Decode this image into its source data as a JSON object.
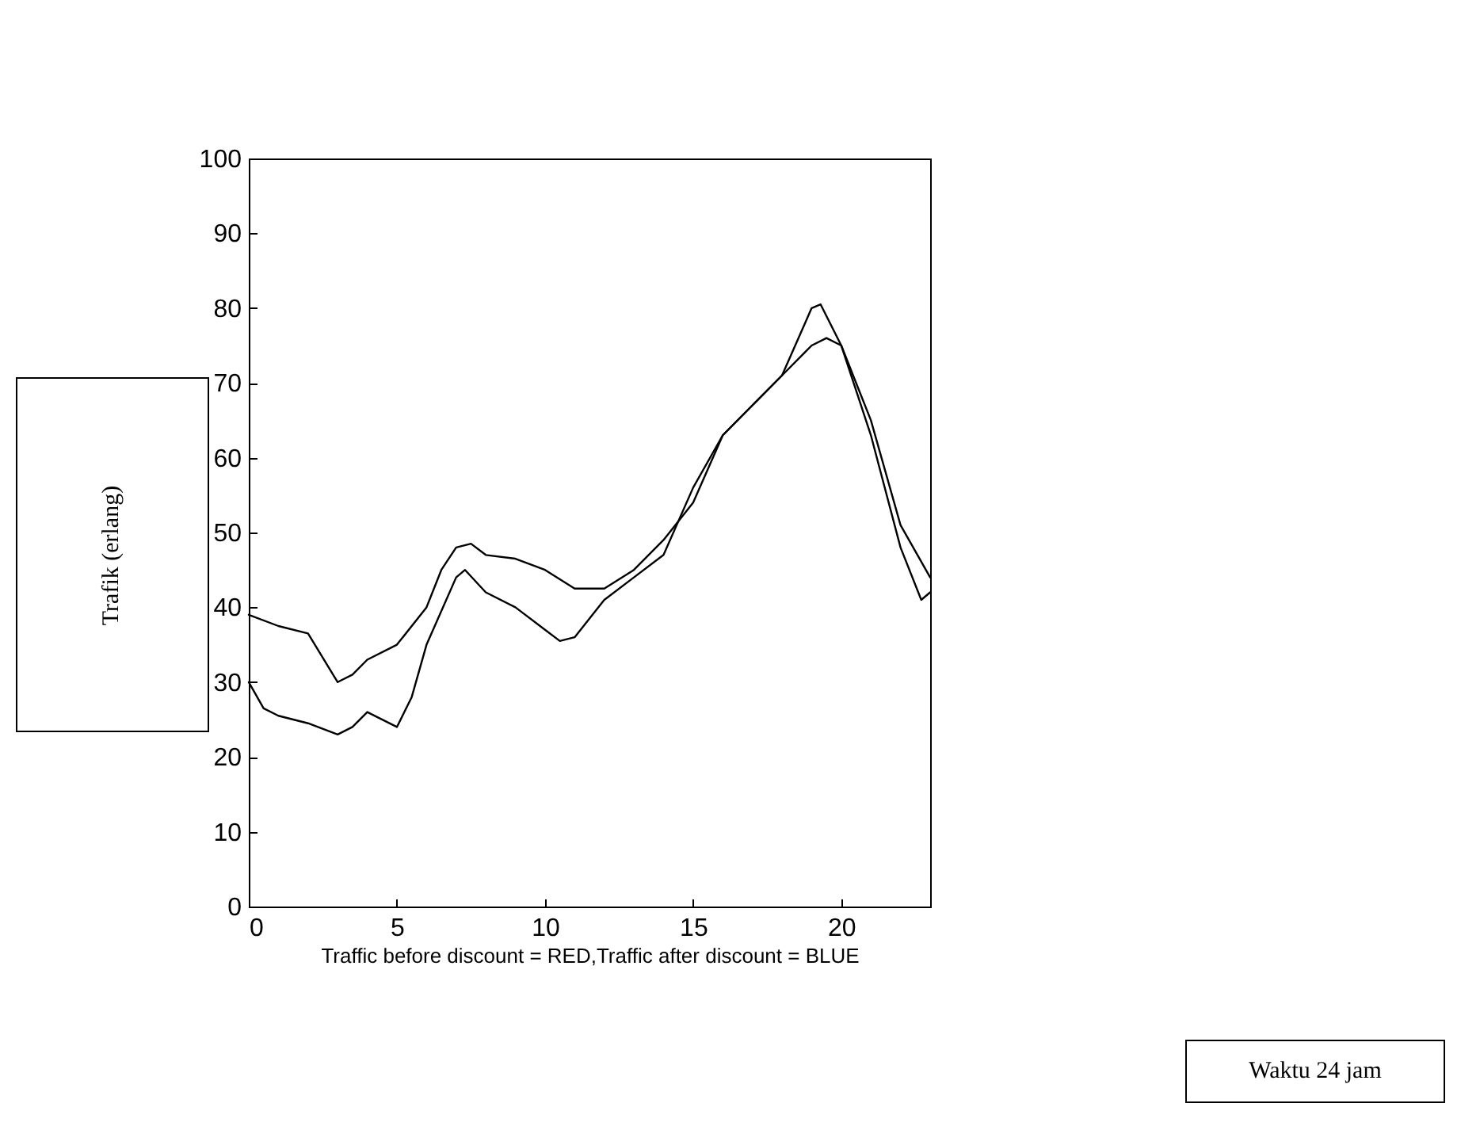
{
  "chart_data": {
    "type": "line",
    "xlabel": "Traffic before discount = RED,Traffic after discount = BLUE",
    "ylabel": "Trafik (erlang)",
    "annotations": [
      "Waktu 24 jam"
    ],
    "xlim": [
      0,
      23
    ],
    "xticks": [
      0,
      5,
      10,
      15,
      20
    ],
    "ylim": [
      0,
      100
    ],
    "yticks": [
      0,
      10,
      20,
      30,
      40,
      50,
      60,
      70,
      80,
      90,
      100
    ],
    "grid": false,
    "line_style": "solid",
    "marker": "none",
    "series": [
      {
        "color": "#000000",
        "x": [
          0,
          1,
          2,
          3,
          3.5,
          4,
          5,
          6,
          6.5,
          7,
          7.5,
          8,
          9,
          10,
          11,
          12,
          13,
          14,
          15,
          16,
          17,
          18,
          19,
          19.5,
          20,
          21,
          22,
          23
        ],
        "values": [
          39,
          37.5,
          36.5,
          30,
          31,
          33,
          35,
          40,
          45,
          48,
          48.5,
          47,
          46.5,
          45,
          42.5,
          42.5,
          45,
          49,
          54,
          63,
          67,
          71,
          75,
          76,
          75,
          65,
          51,
          44
        ]
      },
      {
        "color": "#000000",
        "x": [
          0,
          0.5,
          1,
          2,
          3,
          3.5,
          4,
          5,
          5.5,
          6,
          7,
          7.3,
          8,
          9,
          10,
          10.5,
          11,
          12,
          13,
          14,
          15,
          16,
          17,
          18,
          19,
          19.3,
          20,
          21,
          22,
          22.7,
          23
        ],
        "values": [
          30,
          26.5,
          25.5,
          24.5,
          23,
          24,
          26,
          24,
          28,
          35,
          44,
          45,
          42,
          40,
          37,
          35.5,
          36,
          41,
          44,
          47,
          56,
          63,
          67,
          71,
          80,
          80.5,
          75,
          63,
          48,
          41,
          42
        ]
      }
    ]
  }
}
